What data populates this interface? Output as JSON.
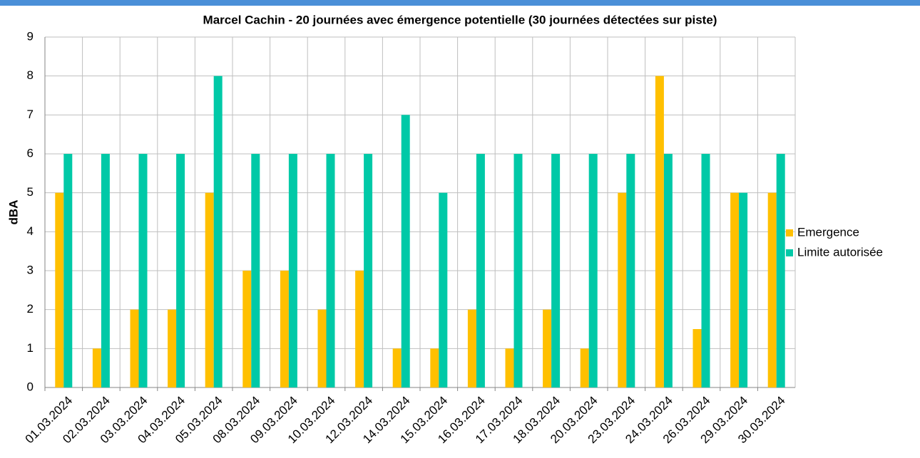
{
  "chart_data": {
    "type": "bar",
    "title": "Marcel Cachin - 20 journées avec émergence potentielle (30 journées détectées sur piste)",
    "y_label": "dBA",
    "categories": [
      "01.03.2024",
      "02.03.2024",
      "03.03.2024",
      "04.03.2024",
      "05.03.2024",
      "08.03.2024",
      "09.03.2024",
      "10.03.2024",
      "12.03.2024",
      "14.03.2024",
      "15.03.2024",
      "16.03.2024",
      "17.03.2024",
      "18.03.2024",
      "20.03.2024",
      "23.03.2024",
      "24.03.2024",
      "26.03.2024",
      "29.03.2024",
      "30.03.2024"
    ],
    "series": [
      {
        "name": "Emergence",
        "color": "#ffc000",
        "values": [
          5,
          1,
          2,
          2,
          5,
          3,
          3,
          2,
          3,
          1,
          1,
          2,
          1,
          2,
          1,
          5,
          8,
          1.5,
          5,
          5
        ]
      },
      {
        "name": "Limite autorisée",
        "color": "#00c9a7",
        "values": [
          6,
          6,
          6,
          6,
          8,
          6,
          6,
          6,
          6,
          7,
          5,
          6,
          6,
          6,
          6,
          6,
          6,
          6,
          5,
          6
        ]
      }
    ],
    "ylim": [
      0,
      9
    ],
    "yticks": [
      0,
      1,
      2,
      3,
      4,
      5,
      6,
      7,
      8,
      9
    ],
    "grid": true,
    "legend": "right"
  }
}
